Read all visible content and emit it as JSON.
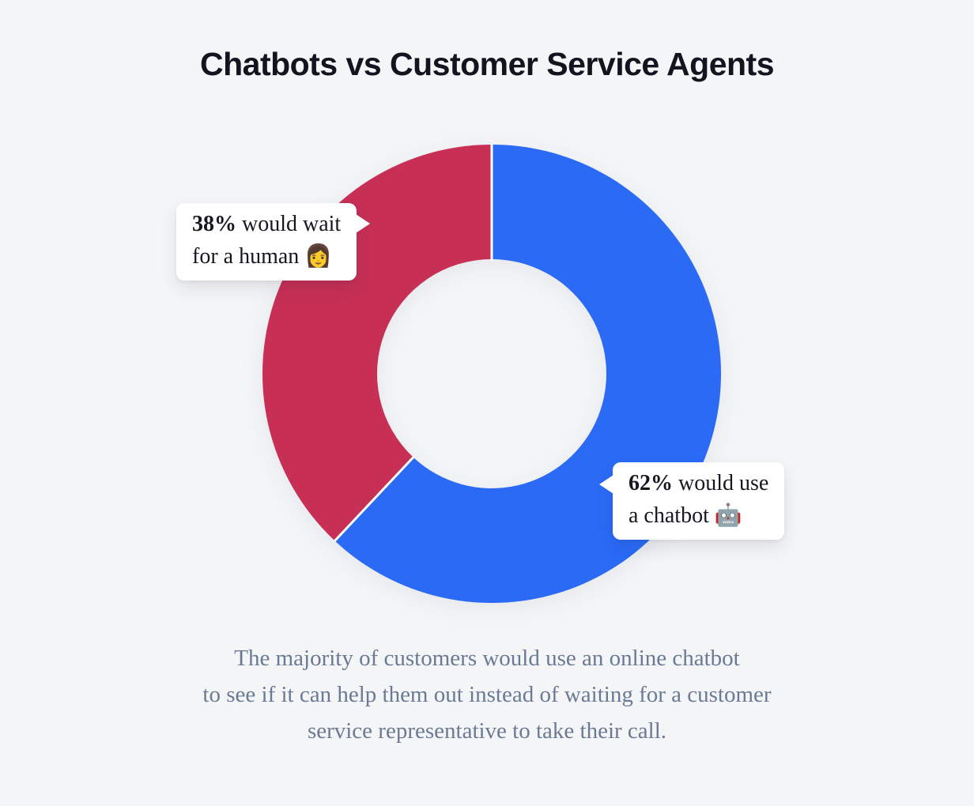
{
  "title": "Chatbots vs Customer Service Agents",
  "colors": {
    "background": "#f4f5f7",
    "chatbot_blue": "#2a6af5",
    "human_red": "#c72f55",
    "title_text": "#13141f",
    "caption_text": "#6b7a94",
    "callout_bg": "#ffffff",
    "separator": "#f4f5f7"
  },
  "chart_data": {
    "type": "pie",
    "subtype": "donut",
    "title": "Chatbots vs Customer Service Agents",
    "labels": [
      "62% would use a chatbot 🤖",
      "38% would wait for a human 👩"
    ],
    "values": [
      62,
      38
    ],
    "units": "%",
    "colors": [
      "#2a6af5",
      "#c72f55"
    ],
    "start_angle_deg": 0,
    "direction": "clockwise",
    "outer_radius": 290,
    "inner_radius": 145,
    "separator_width": 3,
    "legend": "none",
    "annotations": [
      "38% would wait for a human 👩",
      "62% would use a chatbot 🤖"
    ]
  },
  "callouts": {
    "left": {
      "bold": "38%",
      "line1_rest": " would wait",
      "line2": "for a human ",
      "emoji": "👩"
    },
    "right": {
      "bold": "62%",
      "line1_rest": " would use",
      "line2": "a chatbot ",
      "emoji": "🤖"
    }
  },
  "caption": {
    "lines": [
      "The majority of customers would use an online chatbot",
      "to see if it can help them out instead of waiting for a customer",
      "service representative to take their call."
    ]
  }
}
